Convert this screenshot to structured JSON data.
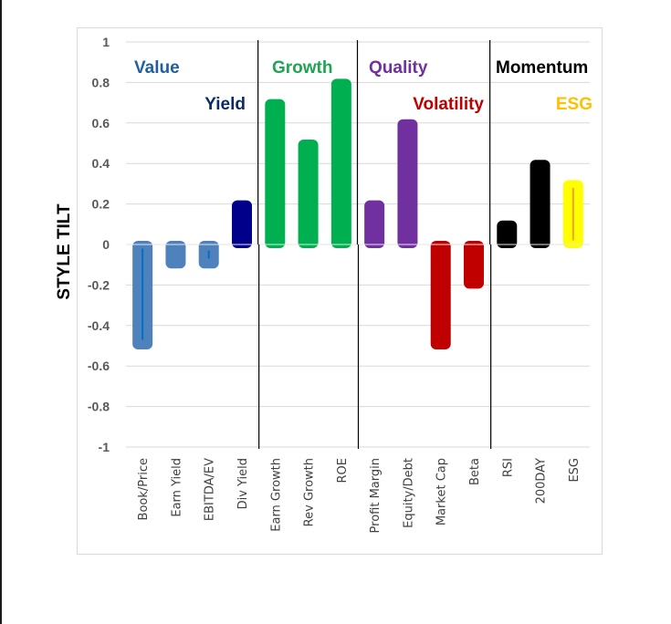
{
  "chart_data": {
    "type": "bar",
    "title": "",
    "xlabel": "",
    "ylabel": "STYLE TILT",
    "ylim": [
      -1,
      1
    ],
    "yticks": [
      "1",
      "0.8",
      "0.6",
      "0.4",
      "0.2",
      "0",
      "-0.2",
      "-0.4",
      "-0.6",
      "-0.8",
      "-1"
    ],
    "ytick_values": [
      1,
      0.8,
      0.6,
      0.4,
      0.2,
      0,
      -0.2,
      -0.4,
      -0.6,
      -0.8,
      -1
    ],
    "grid": true,
    "legend": "none",
    "categories": [
      "Book/Price",
      "Earn Yield",
      "EBITDA/EV",
      "Div Yield",
      "Earn Growth",
      "Rev Growth",
      "ROE",
      "Profit Margin",
      "Equity/Debt",
      "Market Cap",
      "Beta",
      "RSI",
      "200DAY",
      "ESG"
    ],
    "values": [
      -0.5,
      -0.1,
      -0.1,
      0.2,
      0.7,
      0.5,
      0.8,
      0.2,
      0.6,
      -0.5,
      -0.2,
      0.1,
      0.4,
      0.3
    ],
    "bar_colors": [
      "#4F81BD",
      "#4F81BD",
      "#4F81BD",
      "#00008B",
      "#00B050",
      "#00B050",
      "#00B050",
      "#7030A0",
      "#7030A0",
      "#C00000",
      "#C00000",
      "#000000",
      "#000000",
      "#FFFF00"
    ],
    "inner_lines": [
      {
        "category": "Book/Price",
        "from": -0.02,
        "to": -0.47,
        "color": "#0070C0"
      },
      {
        "category": "EBITDA/EV",
        "from": -0.03,
        "to": -0.07,
        "color": "#0070C0"
      },
      {
        "category": "ESG",
        "from": 0.02,
        "to": 0.28,
        "color": "#F4A020"
      }
    ],
    "groups": [
      {
        "name": "Value",
        "color": "#1F5FA0",
        "categories": [
          "Book/Price",
          "Earn Yield",
          "EBITDA/EV"
        ]
      },
      {
        "name": "Yield",
        "color": "#0B2A6B",
        "categories": [
          "Div Yield"
        ]
      },
      {
        "name": "Growth",
        "color": "#21A354",
        "categories": [
          "Earn Growth",
          "Rev Growth",
          "ROE"
        ]
      },
      {
        "name": "Quality",
        "color": "#7030A0",
        "categories": [
          "Profit Margin",
          "Equity/Debt"
        ]
      },
      {
        "name": "Volatility",
        "color": "#C00000",
        "categories": [
          "Market Cap",
          "Beta"
        ]
      },
      {
        "name": "Momentum",
        "color": "#000000",
        "categories": [
          "RSI",
          "200DAY"
        ]
      },
      {
        "name": "ESG",
        "color": "#FFC000",
        "categories": [
          "ESG"
        ]
      }
    ],
    "dividers_after": [
      "Div Yield",
      "ROE",
      "Beta"
    ]
  }
}
